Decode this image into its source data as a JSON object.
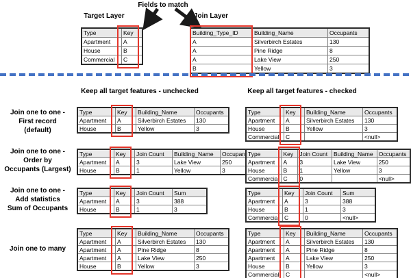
{
  "colors": {
    "highlight_red": "#e5362b",
    "separator_blue": "#4472c4",
    "table_header_bg": "#e9e9e9",
    "arrow_black": "#1a1a1a"
  },
  "top": {
    "fields_to_match_label": "Fields to match",
    "target_layer_label": "Target Layer",
    "join_layer_label": "Join Layer",
    "target_table": {
      "headers": [
        "Type",
        "Key"
      ],
      "rows": [
        [
          "Apartment",
          "A"
        ],
        [
          "House",
          "B"
        ],
        [
          "Commercial",
          "C"
        ]
      ],
      "highlight_col": 1
    },
    "join_table": {
      "headers": [
        "Building_Type_ID",
        "Building_Name",
        "Occupants"
      ],
      "rows": [
        [
          "A",
          "Silverbirch Estates",
          "130"
        ],
        [
          "A",
          "Pine Ridge",
          "8"
        ],
        [
          "A",
          "Lake View",
          "250"
        ],
        [
          "B",
          "Yellow",
          "3"
        ]
      ],
      "highlight_col": 0
    }
  },
  "column_headers": {
    "unchecked": "Keep all target features - unchecked",
    "checked": "Keep all target features - checked"
  },
  "scenarios": [
    {
      "label_lines": [
        "Join one to one -",
        "First record",
        "(default)"
      ],
      "unchecked_table": {
        "headers": [
          "Type",
          "Key",
          "Building_Name",
          "Occupants"
        ],
        "rows": [
          [
            "Apartment",
            "A",
            "Silverbirch Estates",
            "130"
          ],
          [
            "House",
            "B",
            "Yellow",
            "3"
          ]
        ],
        "highlight_col": 1
      },
      "checked_table": {
        "headers": [
          "Type",
          "Key",
          "Building_Name",
          "Occupants"
        ],
        "rows": [
          [
            "Apartment",
            "A",
            "Silverbirch Estates",
            "130"
          ],
          [
            "House",
            "B",
            "Yellow",
            "3"
          ],
          [
            "Commercial",
            "C",
            "",
            "<null>"
          ]
        ],
        "highlight_col": 1
      }
    },
    {
      "label_lines": [
        "Join one to one -",
        "Order by",
        "Occupants (Largest)"
      ],
      "unchecked_table": {
        "headers": [
          "Type",
          "Key",
          "Join Count",
          "Building_Name",
          "Occupants"
        ],
        "rows": [
          [
            "Apartment",
            "A",
            "3",
            "Lake View",
            "250"
          ],
          [
            "House",
            "B",
            "1",
            "Yellow",
            "3"
          ]
        ],
        "highlight_col": 1
      },
      "checked_table": {
        "headers": [
          "Type",
          "Key",
          "Join Count",
          "Building_Name",
          "Occupants"
        ],
        "rows": [
          [
            "Apartment",
            "A",
            "3",
            "Lake View",
            "250"
          ],
          [
            "House",
            "B",
            "1",
            "Yellow",
            "3"
          ],
          [
            "Commercial",
            "C",
            "0",
            "",
            "<null>"
          ]
        ],
        "highlight_col": 1
      }
    },
    {
      "label_lines": [
        "Join one to one -",
        "Add statistics",
        "Sum of Occupants"
      ],
      "unchecked_table": {
        "headers": [
          "Type",
          "Key",
          "Join Count",
          "Sum"
        ],
        "rows": [
          [
            "Apartment",
            "A",
            "3",
            "388"
          ],
          [
            "House",
            "B",
            "1",
            "3"
          ]
        ],
        "highlight_col": 1
      },
      "checked_table": {
        "headers": [
          "Type",
          "Key",
          "Join Count",
          "Sum"
        ],
        "rows": [
          [
            "Apartment",
            "A",
            "3",
            "388"
          ],
          [
            "House",
            "B",
            "1",
            "3"
          ],
          [
            "Commercial",
            "C",
            "0",
            "<null>"
          ]
        ],
        "highlight_col": 1
      }
    },
    {
      "label_lines": [
        "Join one to many"
      ],
      "unchecked_table": {
        "headers": [
          "Type",
          "Key",
          "Building_Name",
          "Occupants"
        ],
        "rows": [
          [
            "Apartment",
            "A",
            "Silverbirch Estates",
            "130"
          ],
          [
            "Apartment",
            "A",
            "Pine Ridge",
            "8"
          ],
          [
            "Apartment",
            "A",
            "Lake View",
            "250"
          ],
          [
            "House",
            "B",
            "Yellow",
            "3"
          ]
        ],
        "highlight_col": 1
      },
      "checked_table": {
        "headers": [
          "Type",
          "Key",
          "Building_Name",
          "Occupants"
        ],
        "rows": [
          [
            "Apartment",
            "A",
            "Silverbirch Estates",
            "130"
          ],
          [
            "Apartment",
            "A",
            "Pine Ridge",
            "8"
          ],
          [
            "Apartment",
            "A",
            "Lake View",
            "250"
          ],
          [
            "House",
            "B",
            "Yellow",
            "3"
          ],
          [
            "Commercial",
            "C",
            "",
            "<null>"
          ]
        ],
        "highlight_col": 1
      }
    }
  ]
}
